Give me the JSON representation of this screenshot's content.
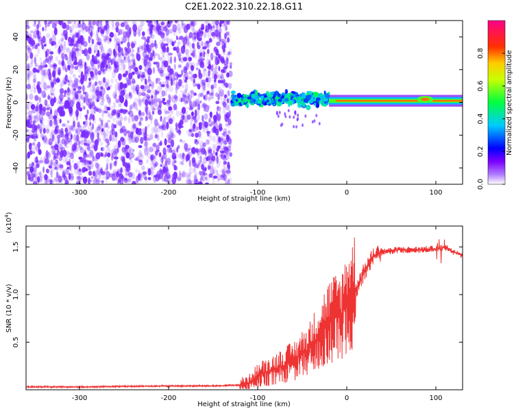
{
  "title": "C2E1.2022.310.22.18.G11",
  "chart_data": [
    {
      "type": "heatmap",
      "xlabel": "Height of straight line (km)",
      "ylabel": "Frequency (Hz)",
      "xlim": [
        -360,
        130
      ],
      "ylim": [
        -50,
        50
      ],
      "xticks": [
        -300,
        -200,
        -100,
        0,
        100
      ],
      "xtick_labels": [
        "-300",
        "-200",
        "-100",
        "0",
        "100"
      ],
      "yticks": [
        -40,
        -20,
        0,
        20,
        40
      ],
      "ytick_labels": [
        "-40",
        "-20",
        "0",
        "20",
        "40"
      ],
      "colorbar": {
        "label": "Normalized spectral amplitude",
        "range": [
          0,
          1
        ],
        "ticks": [
          0,
          0.2,
          0.4,
          0.6,
          0.8
        ],
        "tick_labels": [
          "0.0",
          "0.2",
          "0.4",
          "0.6",
          "0.8"
        ],
        "colors": [
          "#ffffff",
          "#7b00ff",
          "#0000ff",
          "#00ffff",
          "#00ff00",
          "#ffff00",
          "#ff8000",
          "#ff0000",
          "#ff0080"
        ]
      },
      "regions": [
        {
          "x_range": [
            -360,
            -130
          ],
          "freq_range": [
            -50,
            50
          ],
          "amplitude_range": [
            0.0,
            0.15
          ],
          "color": "#7b2bff"
        },
        {
          "x_range": [
            -130,
            -20
          ],
          "freq_range": [
            -8,
            10
          ],
          "amplitude_range": [
            0.2,
            0.5
          ]
        },
        {
          "x_range": [
            -20,
            130
          ],
          "freq_center": 1,
          "freq_width": 3,
          "amplitude_range": [
            0.4,
            0.8
          ]
        }
      ],
      "grid": false
    },
    {
      "type": "line",
      "xlabel": "Height of straight line (km)",
      "ylabel": "SNR (10 * v/v)",
      "y_scale_note": "(x10",
      "y_scale_exp": "4",
      "y_scale_close": ")",
      "xlim": [
        -360,
        130
      ],
      "ylim": [
        0,
        1.72
      ],
      "xticks": [
        -300,
        -200,
        -100,
        0,
        100
      ],
      "xtick_labels": [
        "-300",
        "-200",
        "-100",
        "0",
        "100"
      ],
      "yticks": [
        0.5,
        1.0,
        1.5
      ],
      "ytick_labels": [
        "0.5",
        "1.0",
        "1.5"
      ],
      "color": "#ee3333",
      "x": [
        -360,
        -300,
        -250,
        -200,
        -150,
        -120,
        -110,
        -100,
        -80,
        -60,
        -40,
        -30,
        -20,
        -10,
        -5,
        0,
        10,
        20,
        30,
        40,
        60,
        80,
        100,
        110,
        120,
        130
      ],
      "y": [
        0.03,
        0.03,
        0.035,
        0.04,
        0.04,
        0.05,
        0.07,
        0.15,
        0.22,
        0.3,
        0.45,
        0.6,
        0.72,
        0.78,
        0.8,
        0.95,
        1.05,
        1.25,
        1.4,
        1.45,
        1.47,
        1.47,
        1.48,
        1.5,
        1.45,
        1.41
      ],
      "grid": false
    }
  ]
}
